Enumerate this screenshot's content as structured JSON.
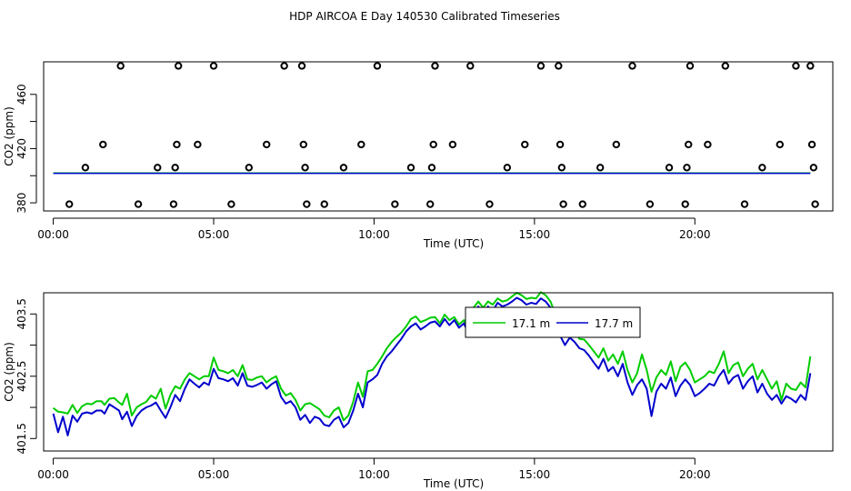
{
  "title": "HDP AIRCOA E  Day 140530  Calibrated Timeseries",
  "colors": {
    "green": "#00cc00",
    "blue": "#0000cc",
    "axis": "#000000"
  },
  "chart_data": [
    {
      "type": "scatter",
      "xlabel": "Time (UTC)",
      "ylabel": "CO2 (ppm)",
      "xlim": [
        -0.3,
        24.3
      ],
      "ylim": [
        374,
        484
      ],
      "xticks": [
        0,
        5,
        10,
        15,
        20
      ],
      "xticklabels": [
        "00:00",
        "05:00",
        "10:00",
        "15:00",
        "20:00"
      ],
      "yticks": [
        380,
        420,
        460
      ],
      "yticklabels": [
        "380",
        "420",
        "460"
      ],
      "flag_points": {
        "x": [
          0.5,
          1.0,
          1.55,
          2.1,
          2.65,
          3.25,
          3.75,
          3.8,
          3.85,
          3.9,
          4.5,
          5.0,
          5.55,
          6.1,
          6.65,
          7.2,
          7.75,
          7.8,
          7.85,
          7.9,
          8.45,
          9.05,
          9.6,
          10.1,
          10.65,
          11.15,
          11.75,
          11.8,
          11.85,
          11.9,
          12.45,
          13.0,
          13.6,
          14.15,
          14.7,
          15.2,
          15.75,
          15.8,
          15.85,
          15.9,
          16.5,
          17.05,
          17.55,
          18.05,
          18.6,
          19.2,
          19.7,
          19.75,
          19.8,
          19.85,
          20.4,
          20.95,
          21.55,
          22.1,
          22.65,
          23.15,
          23.6,
          23.65,
          23.7,
          23.75
        ],
        "y": [
          379,
          406,
          423,
          481,
          379,
          406,
          379,
          406,
          423,
          481,
          423,
          481,
          379,
          406,
          423,
          481,
          481,
          423,
          406,
          379,
          379,
          406,
          423,
          481,
          379,
          406,
          379,
          406,
          423,
          481,
          423,
          481,
          379,
          406,
          423,
          481,
          481,
          423,
          406,
          379,
          379,
          406,
          423,
          481,
          379,
          406,
          379,
          406,
          423,
          481,
          423,
          481,
          379,
          406,
          423,
          481,
          481,
          423,
          406,
          379
        ]
      },
      "series": [
        {
          "color": "green",
          "x": [
            0,
            23.6
          ],
          "y": [
            402,
            402
          ]
        },
        {
          "color": "blue",
          "x": [
            0,
            23.6
          ],
          "y": [
            401.8,
            401.8
          ]
        }
      ]
    },
    {
      "type": "line",
      "xlabel": "Time (UTC)",
      "ylabel": "CO2 (ppm)",
      "xlim": [
        -0.3,
        24.3
      ],
      "ylim": [
        401.3,
        403.84
      ],
      "xticks": [
        0,
        5,
        10,
        15,
        20
      ],
      "xticklabels": [
        "00:00",
        "05:00",
        "10:00",
        "15:00",
        "20:00"
      ],
      "yticks": [
        401.5,
        402.5,
        403.5
      ],
      "yticklabels": [
        "401.5",
        "402.5",
        "403.5"
      ],
      "legend": {
        "position": "top-center",
        "entries": [
          "17.1 m",
          "17.7 m"
        ]
      },
      "series": [
        {
          "name": "17.1 m",
          "color": "green",
          "x": [
            0,
            0.15,
            0.3,
            0.45,
            0.6,
            0.75,
            0.9,
            1.05,
            1.2,
            1.35,
            1.5,
            1.6,
            1.75,
            1.9,
            2.05,
            2.15,
            2.3,
            2.45,
            2.6,
            2.75,
            2.9,
            3.05,
            3.2,
            3.35,
            3.5,
            3.65,
            3.8,
            3.95,
            4.1,
            4.25,
            4.4,
            4.55,
            4.7,
            4.85,
            5.0,
            5.15,
            5.3,
            5.45,
            5.6,
            5.75,
            5.9,
            6.05,
            6.2,
            6.35,
            6.5,
            6.65,
            6.8,
            6.95,
            7.1,
            7.25,
            7.4,
            7.55,
            7.7,
            7.85,
            8.0,
            8.15,
            8.3,
            8.45,
            8.6,
            8.75,
            8.9,
            9.05,
            9.2,
            9.35,
            9.5,
            9.65,
            9.8,
            9.95,
            10.1,
            10.25,
            10.4,
            10.55,
            10.7,
            10.85,
            11.0,
            11.15,
            11.3,
            11.45,
            11.6,
            11.75,
            11.9,
            12.05,
            12.2,
            12.35,
            12.5,
            12.65,
            12.8,
            12.95,
            13.1,
            13.25,
            13.4,
            13.55,
            13.7,
            13.85,
            14.0,
            14.15,
            14.3,
            14.45,
            14.6,
            14.75,
            14.9,
            15.05,
            15.2,
            15.35,
            15.5,
            15.65,
            15.8,
            15.95,
            16.1,
            16.25,
            16.4,
            16.55,
            16.7,
            16.85,
            17.0,
            17.15,
            17.3,
            17.45,
            17.6,
            17.75,
            17.9,
            18.05,
            18.2,
            18.35,
            18.5,
            18.65,
            18.8,
            18.95,
            19.1,
            19.25,
            19.4,
            19.55,
            19.7,
            19.85,
            20.0,
            20.15,
            20.3,
            20.45,
            20.6,
            20.75,
            20.9,
            21.05,
            21.2,
            21.35,
            21.5,
            21.65,
            21.8,
            21.95,
            22.1,
            22.25,
            22.4,
            22.55,
            22.7,
            22.85,
            23.0,
            23.15,
            23.3,
            23.45,
            23.6
          ],
          "y": [
            401.99,
            401.93,
            401.92,
            401.9,
            402.04,
            401.91,
            402.02,
            402.06,
            402.05,
            402.1,
            402.1,
            402.04,
            402.14,
            402.15,
            402.08,
            402.04,
            402.22,
            401.87,
            402.0,
            402.05,
            402.09,
            402.19,
            402.14,
            402.3,
            401.98,
            402.2,
            402.34,
            402.3,
            402.45,
            402.55,
            402.5,
            402.45,
            402.5,
            402.5,
            402.8,
            402.6,
            402.58,
            402.55,
            402.6,
            402.5,
            402.68,
            402.45,
            402.44,
            402.48,
            402.5,
            402.4,
            402.46,
            402.5,
            402.3,
            402.19,
            402.23,
            402.12,
            401.95,
            402.05,
            402.07,
            402.02,
            401.97,
            401.87,
            401.84,
            401.95,
            402.0,
            401.79,
            401.87,
            402.09,
            402.4,
            402.17,
            402.58,
            402.6,
            402.7,
            402.82,
            402.95,
            403.05,
            403.13,
            403.2,
            403.3,
            403.42,
            403.46,
            403.37,
            403.4,
            403.44,
            403.45,
            403.35,
            403.49,
            403.4,
            403.45,
            403.33,
            403.4,
            403.25,
            403.6,
            403.7,
            403.6,
            403.7,
            403.65,
            403.75,
            403.7,
            403.72,
            403.78,
            403.84,
            403.8,
            403.74,
            403.76,
            403.75,
            403.85,
            403.8,
            403.7,
            403.5,
            403.3,
            403.18,
            403.3,
            403.22,
            403.1,
            403.09,
            403.0,
            402.9,
            402.8,
            402.95,
            402.75,
            402.85,
            402.7,
            402.9,
            402.6,
            402.4,
            402.55,
            402.85,
            402.6,
            402.25,
            402.48,
            402.6,
            402.52,
            402.74,
            402.42,
            402.65,
            402.72,
            402.6,
            402.4,
            402.45,
            402.5,
            402.58,
            402.55,
            402.7,
            402.9,
            402.55,
            402.68,
            402.72,
            402.5,
            402.62,
            402.7,
            402.45,
            402.6,
            402.45,
            402.3,
            402.42,
            402.12,
            402.38,
            402.3,
            402.28,
            402.4,
            402.32,
            402.82
          ]
        },
        {
          "name": "17.7 m",
          "color": "blue",
          "x": [
            0,
            0.15,
            0.3,
            0.45,
            0.6,
            0.75,
            0.9,
            1.05,
            1.2,
            1.35,
            1.5,
            1.6,
            1.75,
            1.9,
            2.05,
            2.15,
            2.3,
            2.45,
            2.6,
            2.75,
            2.9,
            3.05,
            3.2,
            3.35,
            3.5,
            3.65,
            3.8,
            3.95,
            4.1,
            4.25,
            4.4,
            4.55,
            4.7,
            4.85,
            5.0,
            5.15,
            5.3,
            5.45,
            5.6,
            5.75,
            5.9,
            6.05,
            6.2,
            6.35,
            6.5,
            6.65,
            6.8,
            6.95,
            7.1,
            7.25,
            7.4,
            7.55,
            7.7,
            7.85,
            8.0,
            8.15,
            8.3,
            8.45,
            8.6,
            8.75,
            8.9,
            9.05,
            9.2,
            9.35,
            9.5,
            9.65,
            9.8,
            9.95,
            10.1,
            10.25,
            10.4,
            10.55,
            10.7,
            10.85,
            11.0,
            11.15,
            11.3,
            11.45,
            11.6,
            11.75,
            11.9,
            12.05,
            12.2,
            12.35,
            12.5,
            12.65,
            12.8,
            12.95,
            13.1,
            13.25,
            13.4,
            13.55,
            13.7,
            13.85,
            14.0,
            14.15,
            14.3,
            14.45,
            14.6,
            14.75,
            14.9,
            15.05,
            15.2,
            15.35,
            15.5,
            15.65,
            15.8,
            15.95,
            16.1,
            16.25,
            16.4,
            16.55,
            16.7,
            16.85,
            17.0,
            17.15,
            17.3,
            17.45,
            17.6,
            17.75,
            17.9,
            18.05,
            18.2,
            18.35,
            18.5,
            18.65,
            18.8,
            18.95,
            19.1,
            19.25,
            19.4,
            19.55,
            19.7,
            19.85,
            20.0,
            20.15,
            20.3,
            20.45,
            20.6,
            20.75,
            20.9,
            21.05,
            21.2,
            21.35,
            21.5,
            21.65,
            21.8,
            21.95,
            22.1,
            22.25,
            22.4,
            22.55,
            22.7,
            22.85,
            23.0,
            23.15,
            23.3,
            23.45,
            23.6
          ],
          "y": [
            401.9,
            401.6,
            401.85,
            401.55,
            401.87,
            401.77,
            401.9,
            401.92,
            401.9,
            401.95,
            401.95,
            401.9,
            402.05,
            402.0,
            401.95,
            401.81,
            401.93,
            401.7,
            401.86,
            401.95,
            402.0,
            402.03,
            402.08,
            401.95,
            401.83,
            402.0,
            402.2,
            402.1,
            402.3,
            402.45,
            402.38,
            402.32,
            402.4,
            402.36,
            402.62,
            402.47,
            402.45,
            402.42,
            402.47,
            402.35,
            402.55,
            402.35,
            402.33,
            402.36,
            402.4,
            402.3,
            402.37,
            402.42,
            402.17,
            402.06,
            402.1,
            402.0,
            401.8,
            401.88,
            401.75,
            401.85,
            401.82,
            401.72,
            401.7,
            401.8,
            401.85,
            401.68,
            401.75,
            401.95,
            402.22,
            402.0,
            402.4,
            402.45,
            402.52,
            402.7,
            402.82,
            402.9,
            403.0,
            403.1,
            403.22,
            403.3,
            403.35,
            403.25,
            403.3,
            403.36,
            403.38,
            403.3,
            403.42,
            403.32,
            403.4,
            403.28,
            403.35,
            403.18,
            403.52,
            403.62,
            403.5,
            403.62,
            403.55,
            403.68,
            403.62,
            403.65,
            403.7,
            403.76,
            403.72,
            403.65,
            403.68,
            403.66,
            403.75,
            403.7,
            403.6,
            403.38,
            403.15,
            403.0,
            403.12,
            403.05,
            402.95,
            402.92,
            402.83,
            402.72,
            402.62,
            402.78,
            402.58,
            402.65,
            402.5,
            402.7,
            402.4,
            402.2,
            402.36,
            402.45,
            402.3,
            401.86,
            402.25,
            402.38,
            402.3,
            402.48,
            402.18,
            402.35,
            402.45,
            402.36,
            402.18,
            402.23,
            402.3,
            402.38,
            402.35,
            402.5,
            402.6,
            402.38,
            402.48,
            402.52,
            402.3,
            402.42,
            402.5,
            402.24,
            402.38,
            402.22,
            402.12,
            402.2,
            402.06,
            402.18,
            402.14,
            402.08,
            402.2,
            402.12,
            402.55
          ]
        }
      ]
    }
  ]
}
